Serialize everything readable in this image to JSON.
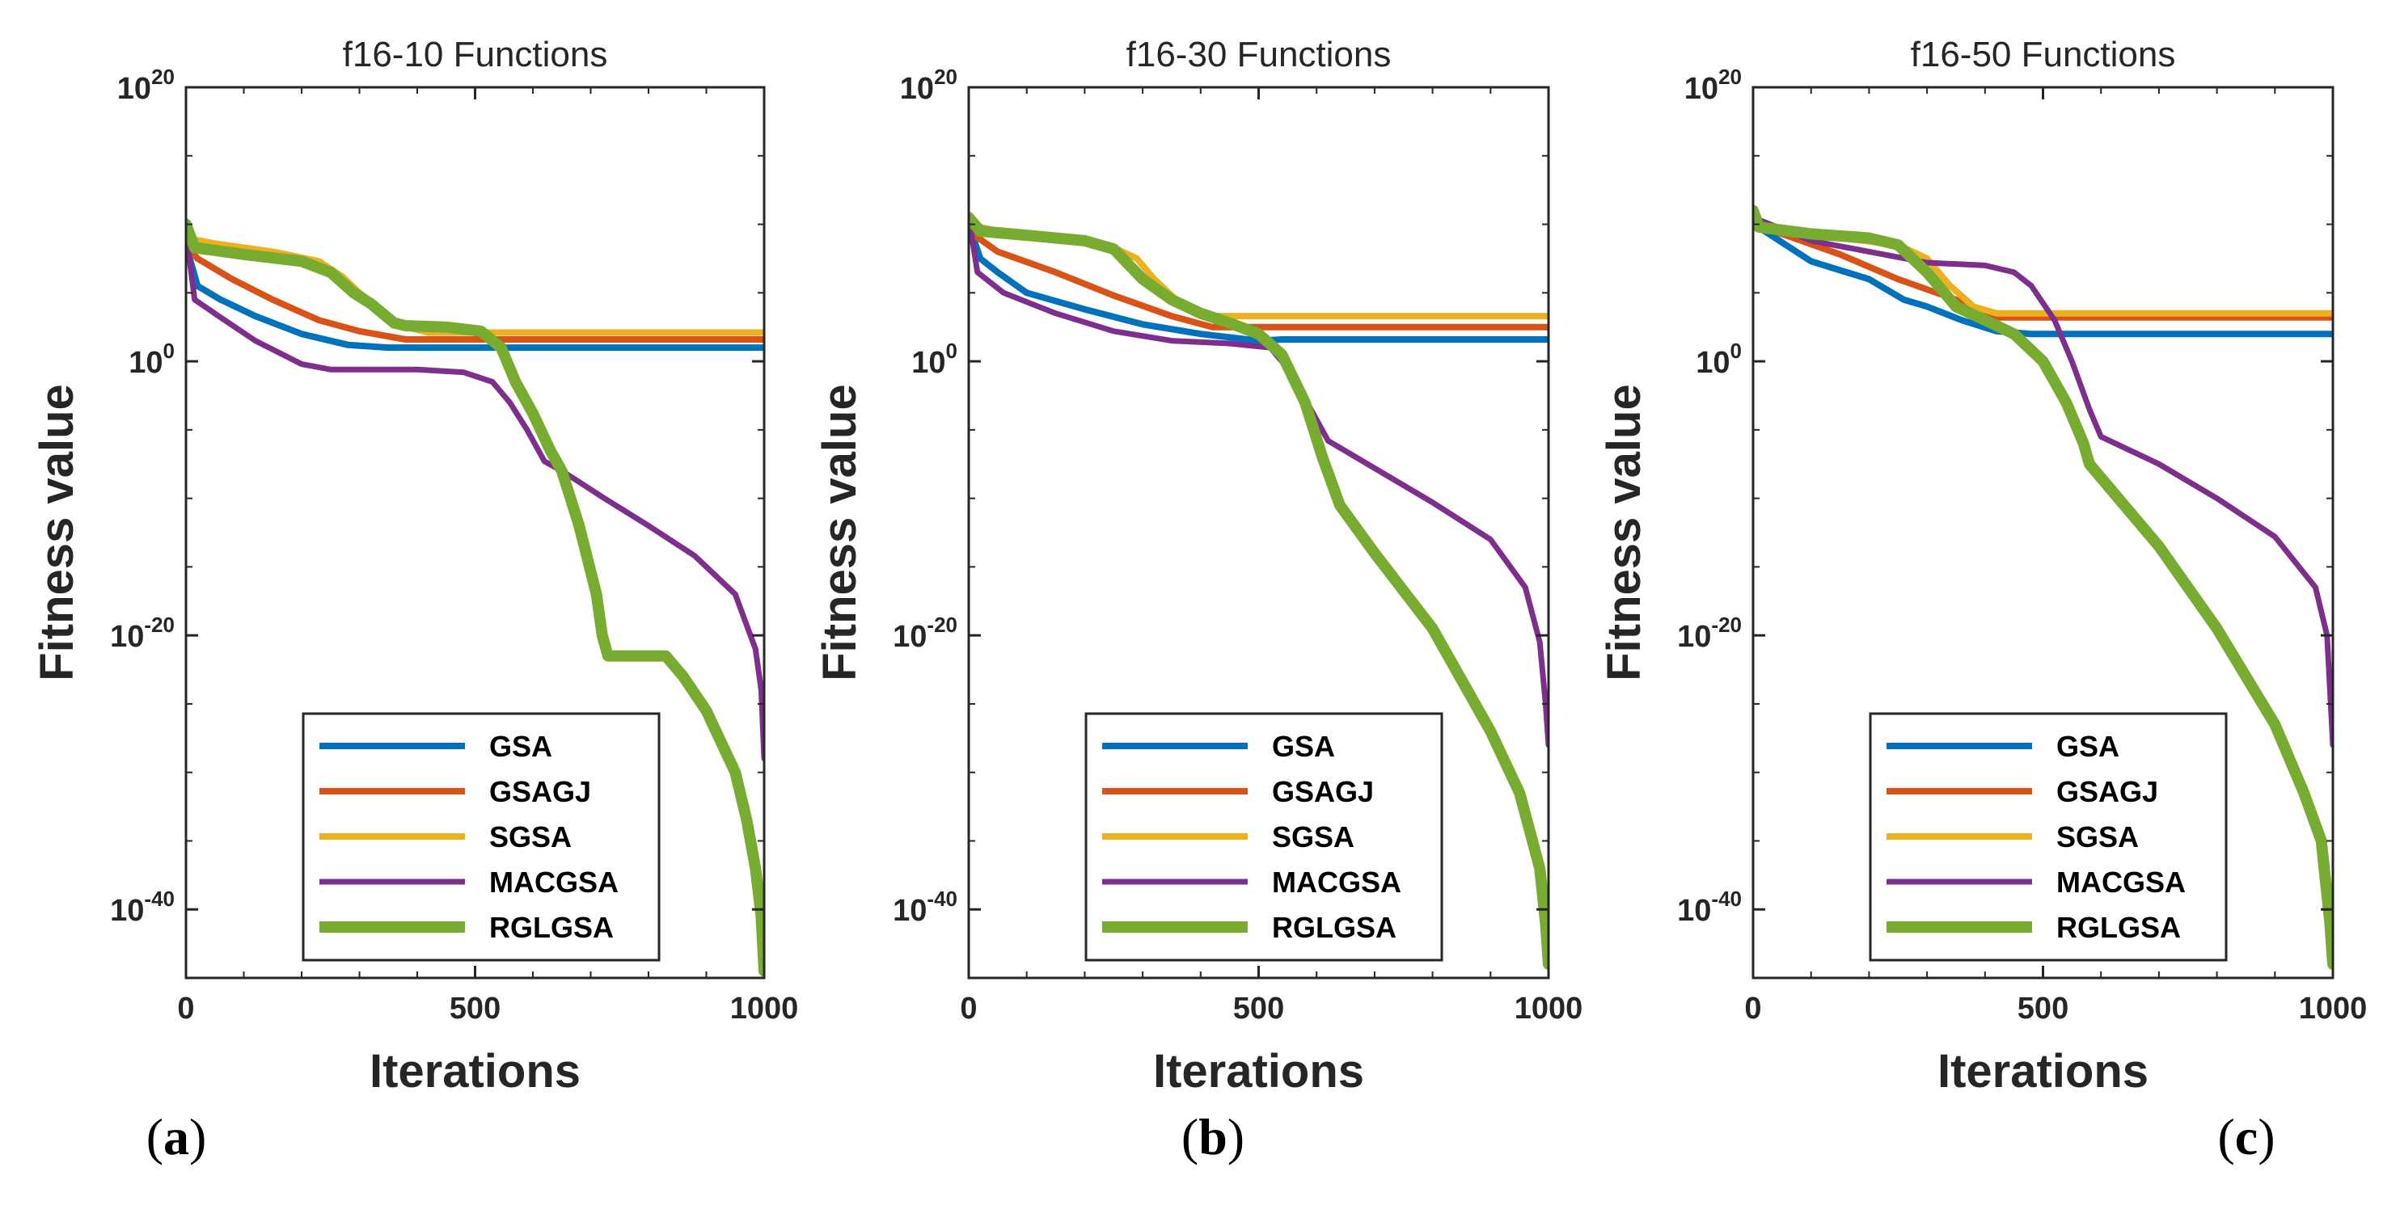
{
  "colors": {
    "GSA": "#0072BD",
    "GSAGJ": "#D95319",
    "SGSA": "#EDB120",
    "MACGSA": "#7E2F8E",
    "RGLGSA": "#77AC30"
  },
  "chart_data": [
    {
      "type": "line",
      "panel_label": "a",
      "title": "f16-10 Functions",
      "xlabel": "Iterations",
      "ylabel": "Fitness value",
      "xlim": [
        0,
        1000
      ],
      "ylim_log10": [
        -45,
        20
      ],
      "yscale": "log",
      "xticks": [
        "0",
        "500",
        "1000"
      ],
      "yticks": [
        {
          "base": "10",
          "exp": "20",
          "value": 20
        },
        {
          "base": "10",
          "exp": "0",
          "value": 0
        },
        {
          "base": "10",
          "exp": "-20",
          "value": -20
        },
        {
          "base": "10",
          "exp": "-40",
          "value": -40
        }
      ],
      "legend_position": "bottom-center",
      "series": [
        {
          "name": "GSA",
          "x": [
            0,
            20,
            60,
            120,
            200,
            280,
            350,
            450,
            1000
          ],
          "log10_y": [
            8.5,
            5.5,
            4.5,
            3.3,
            2.0,
            1.2,
            1.0,
            1.0,
            1.0
          ]
        },
        {
          "name": "GSAGJ",
          "x": [
            0,
            20,
            80,
            150,
            230,
            300,
            380,
            1000
          ],
          "log10_y": [
            8.5,
            7.5,
            6.0,
            4.5,
            3.0,
            2.2,
            1.6,
            1.6
          ]
        },
        {
          "name": "SGSA",
          "x": [
            0,
            50,
            150,
            230,
            270,
            300,
            330,
            370,
            420,
            1000
          ],
          "log10_y": [
            9.0,
            8.6,
            8.0,
            7.3,
            6.2,
            5.0,
            4.0,
            2.6,
            2.1,
            2.1
          ]
        },
        {
          "name": "MACGSA",
          "x": [
            0,
            15,
            60,
            120,
            200,
            250,
            400,
            480,
            530,
            560,
            590,
            620,
            650,
            680,
            720,
            800,
            880,
            950,
            985,
            995,
            1000
          ],
          "log10_y": [
            9.5,
            4.5,
            3.2,
            1.5,
            -0.2,
            -0.6,
            -0.6,
            -0.8,
            -1.5,
            -3.0,
            -5.0,
            -7.3,
            -8.0,
            -8.8,
            -9.9,
            -12.0,
            -14.2,
            -17.0,
            -21.0,
            -24.0,
            -29.0
          ]
        },
        {
          "name": "RGLGSA",
          "x": [
            0,
            15,
            100,
            200,
            250,
            290,
            320,
            360,
            380,
            450,
            510,
            545,
            570,
            600,
            630,
            650,
            680,
            710,
            720,
            730,
            800,
            830,
            860,
            900,
            950,
            970,
            985,
            995,
            1000
          ],
          "log10_y": [
            10.0,
            8.3,
            7.8,
            7.3,
            6.5,
            5.0,
            4.2,
            2.8,
            2.6,
            2.5,
            2.2,
            1.0,
            -1.5,
            -3.8,
            -6.5,
            -8.0,
            -12.0,
            -17.0,
            -20.0,
            -21.5,
            -21.5,
            -21.5,
            -23.0,
            -25.5,
            -30.0,
            -33.5,
            -37.0,
            -40.5,
            -44.5
          ]
        }
      ]
    },
    {
      "type": "line",
      "panel_label": "b",
      "title": "f16-30 Functions",
      "xlabel": "Iterations",
      "ylabel": "Fitness value",
      "xlim": [
        0,
        1000
      ],
      "ylim_log10": [
        -45,
        20
      ],
      "yscale": "log",
      "xticks": [
        "0",
        "500",
        "1000"
      ],
      "yticks": [
        {
          "base": "10",
          "exp": "20",
          "value": 20
        },
        {
          "base": "10",
          "exp": "0",
          "value": 0
        },
        {
          "base": "10",
          "exp": "-20",
          "value": -20
        },
        {
          "base": "10",
          "exp": "-40",
          "value": -40
        }
      ],
      "legend_position": "bottom-center",
      "series": [
        {
          "name": "GSA",
          "x": [
            0,
            20,
            50,
            100,
            200,
            300,
            400,
            500,
            540,
            1000
          ],
          "log10_y": [
            10.0,
            7.5,
            6.5,
            5.0,
            3.8,
            2.7,
            2.0,
            1.5,
            1.6,
            1.6
          ]
        },
        {
          "name": "GSAGJ",
          "x": [
            0,
            50,
            150,
            250,
            350,
            420,
            1000
          ],
          "log10_y": [
            9.5,
            8.0,
            6.5,
            4.8,
            3.3,
            2.5,
            2.5
          ]
        },
        {
          "name": "SGSA",
          "x": [
            0,
            50,
            150,
            250,
            290,
            320,
            370,
            420,
            1000
          ],
          "log10_y": [
            10.0,
            9.5,
            9.0,
            8.3,
            7.5,
            6.0,
            4.0,
            3.3,
            3.3
          ]
        },
        {
          "name": "MACGSA",
          "x": [
            0,
            15,
            60,
            150,
            250,
            350,
            450,
            520,
            560,
            590,
            620,
            700,
            800,
            900,
            960,
            985,
            995,
            1000
          ],
          "log10_y": [
            10.5,
            6.5,
            5.0,
            3.5,
            2.2,
            1.5,
            1.3,
            1.0,
            -1.0,
            -3.5,
            -5.8,
            -7.8,
            -10.3,
            -13.0,
            -16.5,
            -20.5,
            -25.0,
            -28.0
          ]
        },
        {
          "name": "RGLGSA",
          "x": [
            0,
            20,
            100,
            200,
            250,
            300,
            350,
            400,
            450,
            500,
            540,
            580,
            610,
            640,
            700,
            800,
            900,
            950,
            985,
            995,
            1000
          ],
          "log10_y": [
            10.5,
            9.5,
            9.2,
            8.8,
            8.2,
            6.0,
            4.5,
            3.5,
            2.8,
            2.0,
            0.5,
            -3.0,
            -7.0,
            -10.5,
            -14.0,
            -19.5,
            -27.0,
            -31.5,
            -37.0,
            -41.0,
            -44.0
          ]
        }
      ]
    },
    {
      "type": "line",
      "panel_label": "c",
      "title": "f16-50 Functions",
      "xlabel": "Iterations",
      "ylabel": "Fitness value",
      "xlim": [
        0,
        1000
      ],
      "ylim_log10": [
        -45,
        20
      ],
      "yscale": "log",
      "xticks": [
        "0",
        "500",
        "1000"
      ],
      "yticks": [
        {
          "base": "10",
          "exp": "20",
          "value": 20
        },
        {
          "base": "10",
          "exp": "0",
          "value": 0
        },
        {
          "base": "10",
          "exp": "-20",
          "value": -20
        },
        {
          "base": "10",
          "exp": "-40",
          "value": -40
        }
      ],
      "legend_position": "bottom-center",
      "series": [
        {
          "name": "GSA",
          "x": [
            0,
            20,
            100,
            200,
            260,
            300,
            360,
            420,
            480,
            1000
          ],
          "log10_y": [
            10.0,
            9.5,
            7.3,
            6.0,
            4.5,
            4.0,
            3.0,
            2.2,
            2.0,
            2.0
          ]
        },
        {
          "name": "GSAGJ",
          "x": [
            0,
            50,
            150,
            250,
            350,
            420,
            1000
          ],
          "log10_y": [
            10.0,
            9.3,
            7.8,
            6.0,
            4.5,
            3.2,
            3.2
          ]
        },
        {
          "name": "SGSA",
          "x": [
            0,
            50,
            150,
            250,
            300,
            340,
            380,
            420,
            1000
          ],
          "log10_y": [
            10.0,
            9.5,
            9.0,
            8.5,
            7.5,
            5.5,
            4.0,
            3.5,
            3.5
          ]
        },
        {
          "name": "MACGSA",
          "x": [
            0,
            100,
            200,
            300,
            400,
            450,
            480,
            520,
            550,
            580,
            600,
            700,
            800,
            900,
            970,
            990,
            1000
          ],
          "log10_y": [
            10.5,
            8.8,
            8.0,
            7.2,
            7.0,
            6.5,
            5.5,
            3.0,
            0.0,
            -3.5,
            -5.5,
            -7.5,
            -10.0,
            -12.8,
            -16.5,
            -20.0,
            -28.0
          ]
        },
        {
          "name": "RGLGSA",
          "x": [
            0,
            10,
            100,
            200,
            250,
            300,
            350,
            400,
            450,
            500,
            540,
            570,
            580,
            700,
            800,
            900,
            950,
            980,
            995,
            1000
          ],
          "log10_y": [
            11.0,
            9.8,
            9.3,
            9.0,
            8.5,
            6.5,
            4.0,
            3.0,
            2.0,
            0.0,
            -3.0,
            -6.0,
            -7.5,
            -13.5,
            -19.5,
            -26.5,
            -31.5,
            -35.0,
            -41.0,
            -44.0
          ]
        }
      ]
    }
  ]
}
